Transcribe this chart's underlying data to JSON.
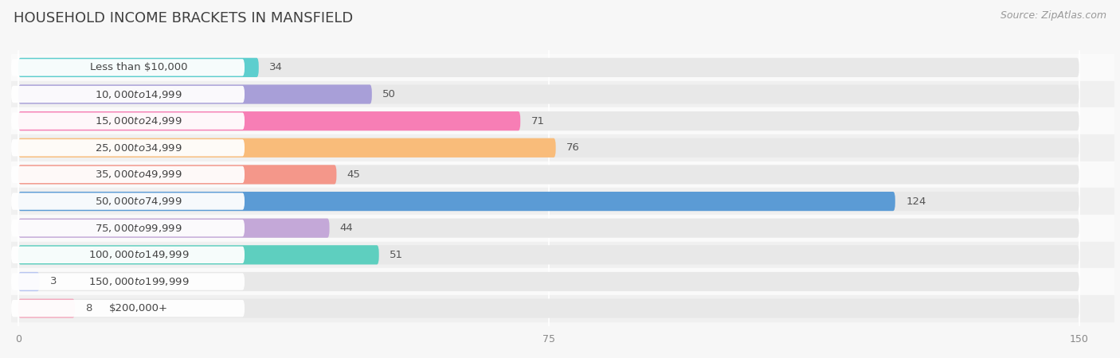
{
  "title": "HOUSEHOLD INCOME BRACKETS IN MANSFIELD",
  "source": "Source: ZipAtlas.com",
  "categories": [
    "Less than $10,000",
    "$10,000 to $14,999",
    "$15,000 to $24,999",
    "$25,000 to $34,999",
    "$35,000 to $49,999",
    "$50,000 to $74,999",
    "$75,000 to $99,999",
    "$100,000 to $149,999",
    "$150,000 to $199,999",
    "$200,000+"
  ],
  "values": [
    34,
    50,
    71,
    76,
    45,
    124,
    44,
    51,
    3,
    8
  ],
  "bar_colors": [
    "#5DCECE",
    "#A89FD8",
    "#F77EB5",
    "#F9BC7A",
    "#F4978A",
    "#5B9BD5",
    "#C4A8D8",
    "#5ECFBF",
    "#B8C4F0",
    "#F4AABF"
  ],
  "xlim": [
    0,
    150
  ],
  "xticks": [
    0,
    75,
    150
  ],
  "background_color": "#f7f7f7",
  "bar_background_color": "#e8e8e8",
  "row_bg_odd": "#f0f0f0",
  "row_bg_even": "#fafafa",
  "title_fontsize": 13,
  "label_fontsize": 9.5,
  "value_fontsize": 9.5,
  "source_fontsize": 9
}
